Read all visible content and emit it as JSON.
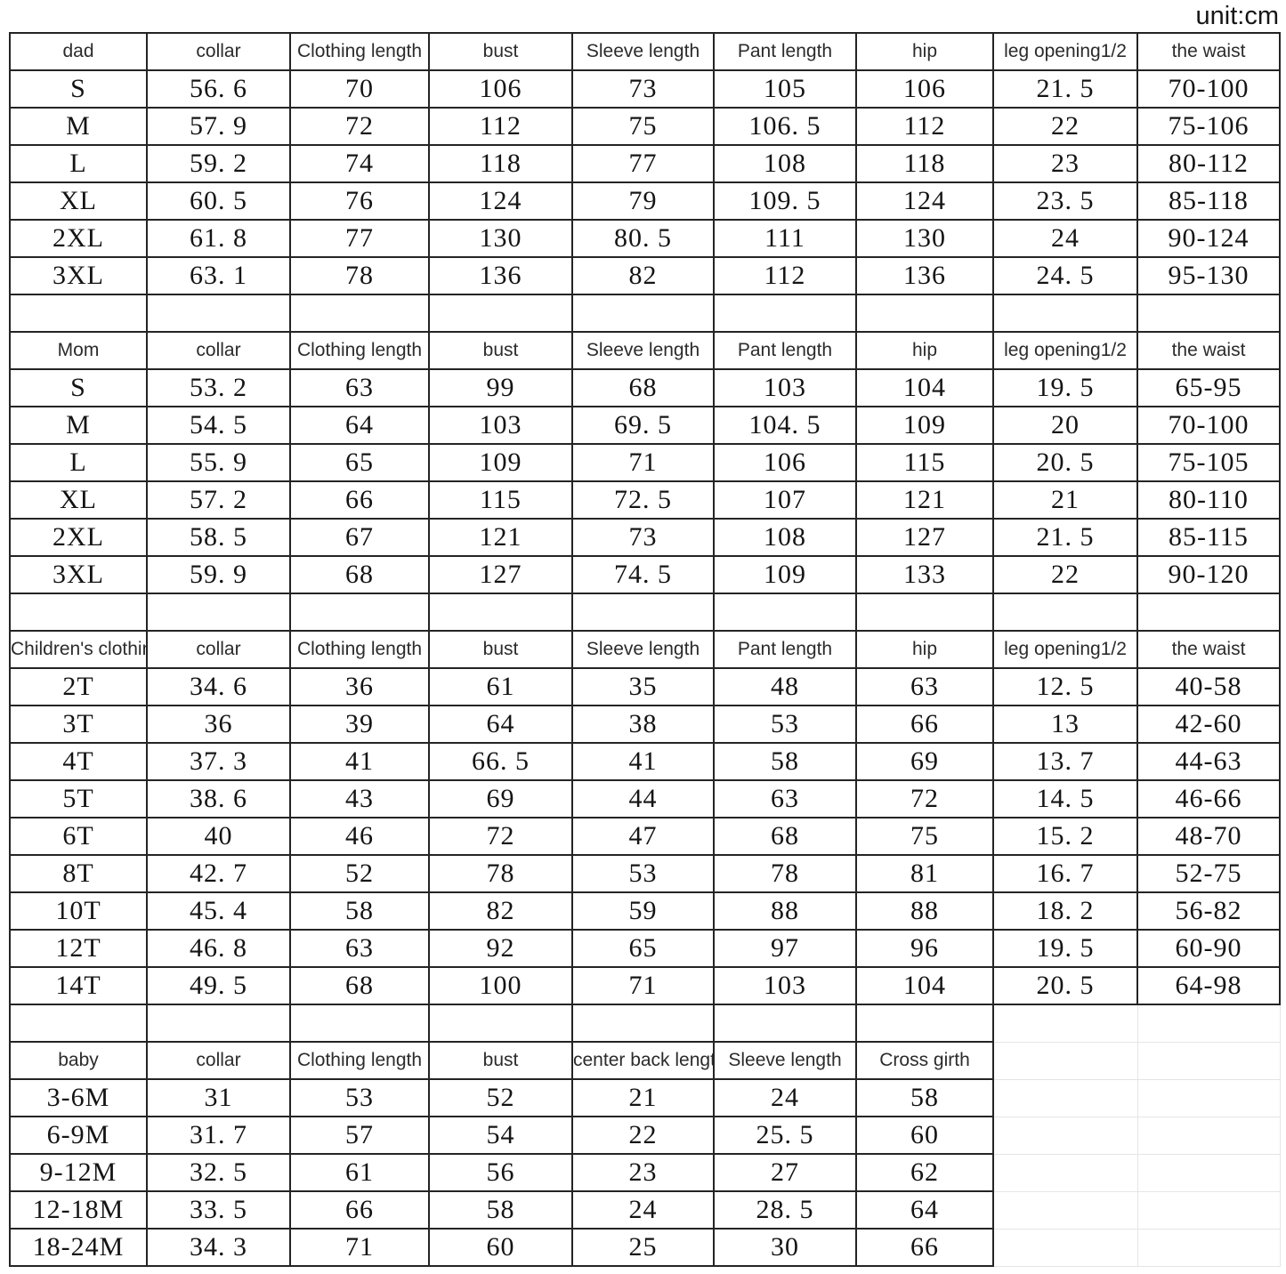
{
  "unit_label": "unit:cm",
  "colors": {
    "border": "#242424",
    "text": "#141414",
    "ghost_line": "#e5e5e5",
    "background": "#ffffff"
  },
  "sections": [
    {
      "name": "dad",
      "header": [
        "dad",
        "collar",
        "Clothing length",
        "bust",
        "Sleeve length",
        "Pant length",
        "hip",
        "leg opening1/2",
        "the waist"
      ],
      "rows": [
        [
          "S",
          "56. 6",
          "70",
          "106",
          "73",
          "105",
          "106",
          "21. 5",
          "70-100"
        ],
        [
          "M",
          "57. 9",
          "72",
          "112",
          "75",
          "106. 5",
          "112",
          "22",
          "75-106"
        ],
        [
          "L",
          "59. 2",
          "74",
          "118",
          "77",
          "108",
          "118",
          "23",
          "80-112"
        ],
        [
          "XL",
          "60. 5",
          "76",
          "124",
          "79",
          "109. 5",
          "124",
          "23. 5",
          "85-118"
        ],
        [
          "2XL",
          "61. 8",
          "77",
          "130",
          "80. 5",
          "111",
          "130",
          "24",
          "90-124"
        ],
        [
          "3XL",
          "63. 1",
          "78",
          "136",
          "82",
          "112",
          "136",
          "24. 5",
          "95-130"
        ]
      ]
    },
    {
      "name": "mom",
      "header": [
        "Mom",
        "collar",
        "Clothing length",
        "bust",
        "Sleeve length",
        "Pant length",
        "hip",
        "leg opening1/2",
        "the waist"
      ],
      "rows": [
        [
          "S",
          "53. 2",
          "63",
          "99",
          "68",
          "103",
          "104",
          "19. 5",
          "65-95"
        ],
        [
          "M",
          "54. 5",
          "64",
          "103",
          "69. 5",
          "104. 5",
          "109",
          "20",
          "70-100"
        ],
        [
          "L",
          "55. 9",
          "65",
          "109",
          "71",
          "106",
          "115",
          "20. 5",
          "75-105"
        ],
        [
          "XL",
          "57. 2",
          "66",
          "115",
          "72. 5",
          "107",
          "121",
          "21",
          "80-110"
        ],
        [
          "2XL",
          "58. 5",
          "67",
          "121",
          "73",
          "108",
          "127",
          "21. 5",
          "85-115"
        ],
        [
          "3XL",
          "59. 9",
          "68",
          "127",
          "74. 5",
          "109",
          "133",
          "22",
          "90-120"
        ]
      ]
    },
    {
      "name": "children",
      "header": [
        "Children's clothing",
        "collar",
        "Clothing length",
        "bust",
        "Sleeve length",
        "Pant length",
        "hip",
        "leg opening1/2",
        "the waist"
      ],
      "rows": [
        [
          "2T",
          "34. 6",
          "36",
          "61",
          "35",
          "48",
          "63",
          "12. 5",
          "40-58"
        ],
        [
          "3T",
          "36",
          "39",
          "64",
          "38",
          "53",
          "66",
          "13",
          "42-60"
        ],
        [
          "4T",
          "37. 3",
          "41",
          "66. 5",
          "41",
          "58",
          "69",
          "13. 7",
          "44-63"
        ],
        [
          "5T",
          "38. 6",
          "43",
          "69",
          "44",
          "63",
          "72",
          "14. 5",
          "46-66"
        ],
        [
          "6T",
          "40",
          "46",
          "72",
          "47",
          "68",
          "75",
          "15. 2",
          "48-70"
        ],
        [
          "8T",
          "42. 7",
          "52",
          "78",
          "53",
          "78",
          "81",
          "16. 7",
          "52-75"
        ],
        [
          "10T",
          "45. 4",
          "58",
          "82",
          "59",
          "88",
          "88",
          "18. 2",
          "56-82"
        ],
        [
          "12T",
          "46. 8",
          "63",
          "92",
          "65",
          "97",
          "96",
          "19. 5",
          "60-90"
        ],
        [
          "14T",
          "49. 5",
          "68",
          "100",
          "71",
          "103",
          "104",
          "20. 5",
          "64-98"
        ]
      ]
    },
    {
      "name": "baby",
      "header": [
        "baby",
        "collar",
        "Clothing length",
        "bust",
        "center back length",
        "Sleeve length",
        "Cross girth"
      ],
      "rows": [
        [
          "3-6M",
          "31",
          "53",
          "52",
          "21",
          "24",
          "58"
        ],
        [
          "6-9M",
          "31. 7",
          "57",
          "54",
          "22",
          "25. 5",
          "60"
        ],
        [
          "9-12M",
          "32. 5",
          "61",
          "56",
          "23",
          "27",
          "62"
        ],
        [
          "12-18M",
          "33. 5",
          "66",
          "58",
          "24",
          "28. 5",
          "64"
        ],
        [
          "18-24M",
          "34. 3",
          "71",
          "60",
          "25",
          "30",
          "66"
        ]
      ]
    }
  ]
}
